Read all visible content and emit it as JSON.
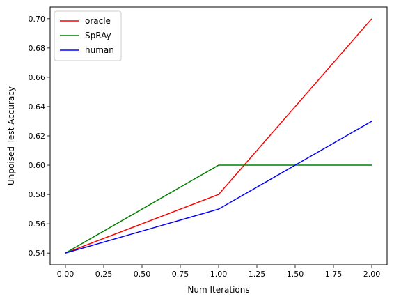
{
  "chart_data": {
    "type": "line",
    "title": "",
    "xlabel": "Num Iterations",
    "ylabel": "Unpoised Test Accuracy",
    "x": [
      0,
      1,
      2
    ],
    "xlim": [
      -0.1,
      2.1
    ],
    "ylim": [
      0.532,
      0.708
    ],
    "xticks": [
      0.0,
      0.25,
      0.5,
      0.75,
      1.0,
      1.25,
      1.5,
      1.75,
      2.0
    ],
    "xtick_labels": [
      "0.00",
      "0.25",
      "0.50",
      "0.75",
      "1.00",
      "1.25",
      "1.50",
      "1.75",
      "2.00"
    ],
    "yticks": [
      0.54,
      0.56,
      0.58,
      0.6,
      0.62,
      0.64,
      0.66,
      0.68,
      0.7
    ],
    "ytick_labels": [
      "0.54",
      "0.56",
      "0.58",
      "0.60",
      "0.62",
      "0.64",
      "0.66",
      "0.68",
      "0.70"
    ],
    "grid": false,
    "legend_position": "top-left",
    "series": [
      {
        "name": "oracle",
        "color": "#ff0000",
        "values": [
          0.54,
          0.58,
          0.7
        ]
      },
      {
        "name": "SpRAy",
        "color": "#008000",
        "values": [
          0.54,
          0.6,
          0.6
        ]
      },
      {
        "name": "human",
        "color": "#0000ff",
        "values": [
          0.54,
          0.57,
          0.63
        ]
      }
    ]
  }
}
